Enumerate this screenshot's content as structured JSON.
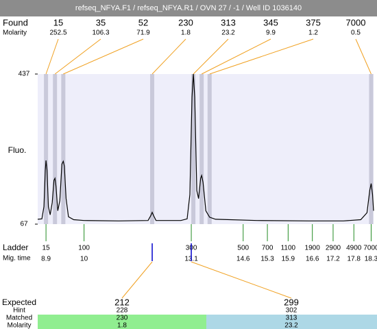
{
  "title": "refseq_NFYA.F1 / refseq_NFYA.R1 / OVN 27 / -1 / Well ID 1036140",
  "found": {
    "label": "Found",
    "sublabel": "Molarity",
    "peaks": [
      {
        "size": 15,
        "molarity": 252.5,
        "time": 8.9
      },
      {
        "size": 35,
        "molarity": 106.3,
        "time": 9.16
      },
      {
        "size": 52,
        "molarity": 71.9,
        "time": 9.4
      },
      {
        "size": 230,
        "molarity": 1.8,
        "time": 11.97
      },
      {
        "size": 313,
        "molarity": 23.2,
        "time": 13.16
      },
      {
        "size": 345,
        "molarity": 9.9,
        "time": 13.4
      },
      {
        "size": 375,
        "molarity": 1.2,
        "time": 13.63
      },
      {
        "size": 7000,
        "molarity": 0.5,
        "time": 18.3
      }
    ]
  },
  "chart_data": {
    "type": "electropherogram",
    "y_label": "Fluo.",
    "ylim": [
      67,
      437
    ],
    "yticks": [
      67,
      437
    ],
    "xlim": [
      8.66,
      18.37
    ],
    "color": "#000000",
    "plot_color": "#eeeefa",
    "band_color": "#c9c9da",
    "x": [
      8.66,
      8.78,
      8.84,
      8.88,
      8.9,
      8.93,
      8.97,
      9.02,
      9.08,
      9.13,
      9.16,
      9.19,
      9.24,
      9.3,
      9.36,
      9.4,
      9.43,
      9.48,
      9.55,
      9.7,
      10.0,
      11.0,
      11.85,
      11.93,
      11.97,
      12.01,
      12.08,
      12.8,
      12.98,
      13.06,
      13.12,
      13.16,
      13.2,
      13.26,
      13.31,
      13.37,
      13.4,
      13.44,
      13.52,
      13.63,
      13.8,
      15.0,
      16.5,
      17.5,
      18.0,
      18.18,
      18.26,
      18.3,
      18.34,
      18.37
    ],
    "values": [
      79,
      80,
      110,
      200,
      224,
      200,
      110,
      90,
      120,
      175,
      180,
      160,
      100,
      125,
      215,
      222,
      210,
      130,
      85,
      78,
      76,
      75,
      76,
      88,
      96,
      88,
      76,
      76,
      80,
      140,
      380,
      437,
      380,
      150,
      130,
      180,
      187,
      170,
      100,
      84,
      79,
      76,
      75,
      75,
      78,
      95,
      150,
      167,
      140,
      100
    ]
  },
  "ladder": {
    "label": "Ladder",
    "sublabel": "Mig. time",
    "color": "#228b22",
    "sizes": [
      15,
      100,
      300,
      500,
      700,
      1100,
      1900,
      2900,
      4900,
      7000
    ],
    "times": [
      8.9,
      10,
      13.1,
      14.6,
      15.3,
      15.9,
      16.6,
      17.2,
      17.8,
      18.3
    ]
  },
  "expected": {
    "labels": [
      "Expected",
      "Hint",
      "Matched",
      "Molarity"
    ],
    "columns": [
      {
        "expected": 212,
        "hint": 228,
        "matched": 230,
        "molarity": 1.8,
        "time": 11.97,
        "color": "#90ee90"
      },
      {
        "expected": 299,
        "hint": 302,
        "matched": 313,
        "molarity": 23.2,
        "time": 13.1,
        "color": "#add8e6"
      }
    ]
  }
}
